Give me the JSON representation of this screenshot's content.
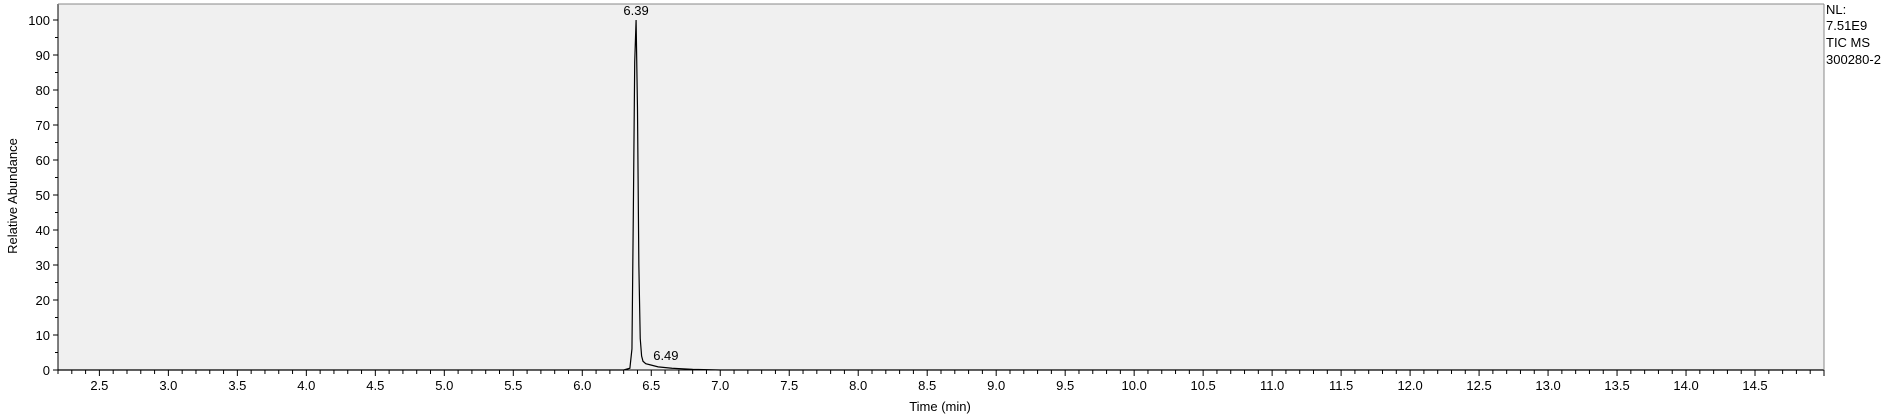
{
  "chart_data": {
    "type": "line",
    "title": "",
    "xlabel": "Time (min)",
    "ylabel": "Relative Abundance",
    "xlim": [
      2.2,
      15.0
    ],
    "ylim": [
      0,
      100
    ],
    "x_ticks": [
      2.5,
      3.0,
      3.5,
      4.0,
      4.5,
      5.0,
      5.5,
      6.0,
      6.5,
      7.0,
      7.5,
      8.0,
      8.5,
      9.0,
      9.5,
      10.0,
      10.5,
      11.0,
      11.5,
      12.0,
      12.5,
      13.0,
      13.5,
      14.0,
      14.5
    ],
    "x_tick_labels": [
      "2.5",
      "3.0",
      "3.5",
      "4.0",
      "4.5",
      "5.0",
      "5.5",
      "6.0",
      "6.5",
      "7.0",
      "7.5",
      "8.0",
      "8.5",
      "9.0",
      "9.5",
      "10.0",
      "10.5",
      "11.0",
      "11.5",
      "12.0",
      "12.5",
      "13.0",
      "13.5",
      "14.0",
      "14.5"
    ],
    "y_ticks": [
      0,
      10,
      20,
      30,
      40,
      50,
      60,
      70,
      80,
      90,
      100
    ],
    "y_tick_labels": [
      "0",
      "10",
      "20",
      "30",
      "40",
      "50",
      "60",
      "70",
      "80",
      "90",
      "100"
    ],
    "grid": false,
    "background": "#f0f0f0",
    "line_color": "#000000",
    "series": [
      {
        "x": [
          2.2,
          6.3,
          6.345,
          6.36,
          6.37,
          6.38,
          6.39,
          6.4,
          6.41,
          6.42,
          6.43,
          6.44,
          6.46,
          6.49,
          6.55,
          6.65,
          6.8,
          7.0,
          15.0
        ],
        "y": [
          0,
          0,
          0.5,
          6,
          45,
          88,
          100,
          75,
          30,
          9,
          4,
          2.5,
          1.8,
          1.5,
          0.9,
          0.5,
          0.2,
          0,
          0
        ]
      }
    ],
    "annotations": [
      {
        "x": 6.39,
        "y": 100,
        "text": "6.39"
      },
      {
        "x": 6.49,
        "y": 1.5,
        "text": "6.49"
      }
    ]
  },
  "info": {
    "nl_label": "NL:",
    "nl_value": "7.51E9",
    "scan_filter": "TIC  MS",
    "sample_name": "300280-2"
  }
}
